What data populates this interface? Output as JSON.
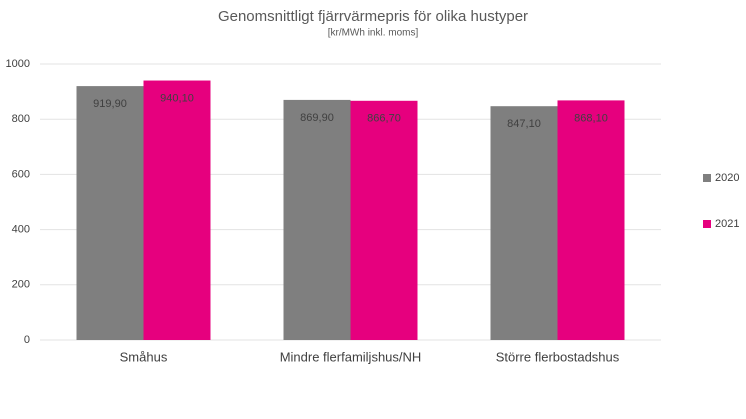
{
  "chart_data": {
    "type": "bar",
    "title": "Genomsnittligt fjärrvärmepris för olika hustyper",
    "subtitle": "[kr/MWh inkl. moms]",
    "categories": [
      "Småhus",
      "Mindre flerfamiljshus/NH",
      "Större flerbostadshus"
    ],
    "series": [
      {
        "name": "2020",
        "color": "#7f7f7f",
        "values": [
          919.9,
          869.9,
          847.1
        ],
        "value_labels": [
          "919,90",
          "869,90",
          "847,10"
        ]
      },
      {
        "name": "2021",
        "color": "#e6007e",
        "values": [
          940.1,
          866.7,
          868.1
        ],
        "value_labels": [
          "940,10",
          "866,70",
          "868,10"
        ]
      }
    ],
    "ylim": [
      0,
      1000
    ],
    "yticks": [
      0,
      200,
      400,
      600,
      800,
      1000
    ],
    "grid": true,
    "legend": "right"
  }
}
